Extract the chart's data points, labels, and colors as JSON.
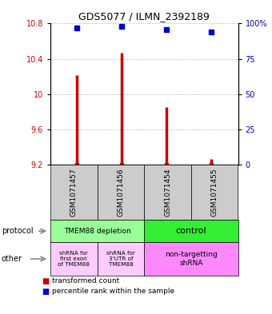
{
  "title": "GDS5077 / ILMN_2392189",
  "samples": [
    "GSM1071457",
    "GSM1071456",
    "GSM1071454",
    "GSM1071455"
  ],
  "red_values": [
    10.22,
    10.47,
    9.85,
    9.27
  ],
  "blue_values": [
    97,
    98,
    96,
    94
  ],
  "ylim_left": [
    9.2,
    10.8
  ],
  "ylim_right": [
    0,
    100
  ],
  "yticks_left": [
    9.2,
    9.6,
    10.0,
    10.4,
    10.8
  ],
  "yticks_right": [
    0,
    25,
    50,
    75,
    100
  ],
  "ytick_labels_left": [
    "9.2",
    "9.6",
    "10",
    "10.4",
    "10.8"
  ],
  "ytick_labels_right": [
    "0",
    "25",
    "50",
    "75",
    "100%"
  ],
  "red_color": "#cc0000",
  "blue_color": "#0000cc",
  "protocol_col1_label": "TMEM88 depletion",
  "protocol_col1_color": "#99ff99",
  "protocol_col2_label": "control",
  "protocol_col2_color": "#33ee33",
  "other_cell1_label": "shRNA for\nfirst exon\nof TMEM88",
  "other_cell1_color": "#ffccff",
  "other_cell2_label": "shRNA for\n3'UTR of\nTMEM88",
  "other_cell2_color": "#ffccff",
  "other_cell3_label": "non-targetting\nshRNA",
  "other_cell3_color": "#ff88ff",
  "legend_red_label": "transformed count",
  "legend_blue_label": "percentile rank within the sample",
  "protocol_label": "protocol",
  "other_label": "other",
  "sample_bg_color": "#cccccc",
  "grid_color": "#888888"
}
